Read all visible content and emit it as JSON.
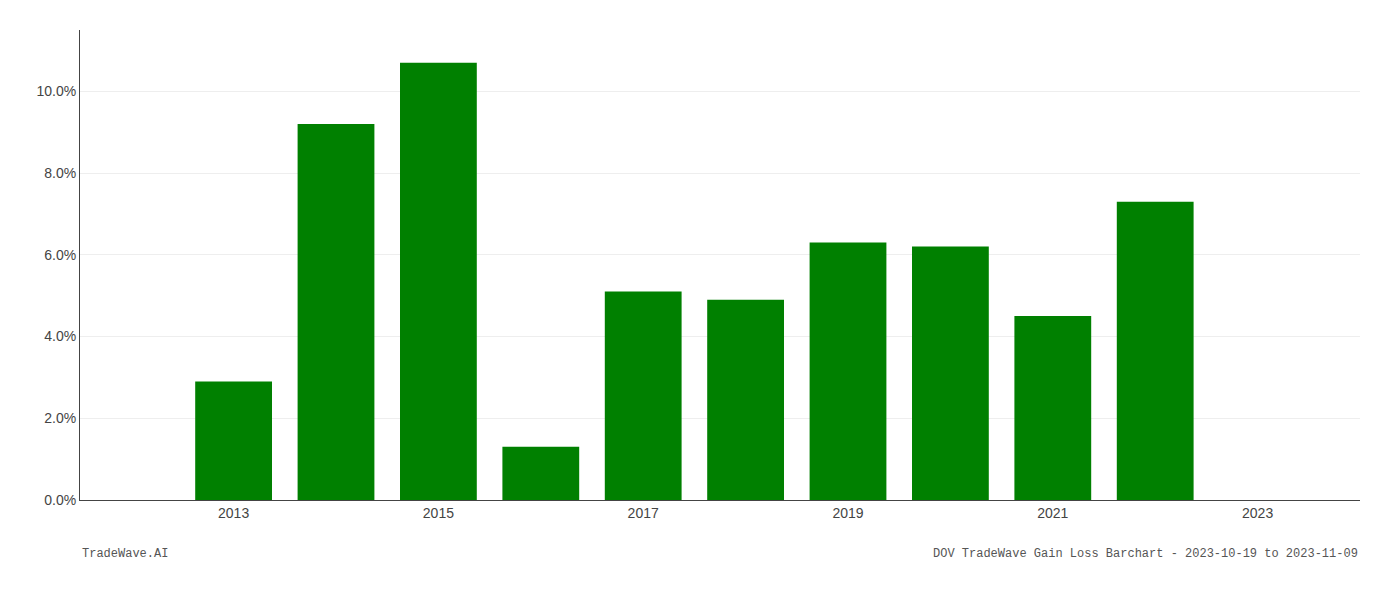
{
  "chart_data": {
    "type": "bar",
    "x": [
      2013,
      2014,
      2015,
      2016,
      2017,
      2018,
      2019,
      2020,
      2021,
      2022
    ],
    "values": [
      0.029,
      0.092,
      0.107,
      0.013,
      0.051,
      0.049,
      0.063,
      0.062,
      0.045,
      0.073
    ],
    "color": "#008000",
    "xlim": [
      2011.5,
      2024.0
    ],
    "xticks": [
      2013,
      2015,
      2017,
      2019,
      2021,
      2023
    ],
    "ylim": [
      0,
      0.115
    ],
    "yticks": [
      {
        "value": 0.0,
        "label": "0.0%"
      },
      {
        "value": 0.02,
        "label": "2.0%"
      },
      {
        "value": 0.04,
        "label": "4.0%"
      },
      {
        "value": 0.06,
        "label": "6.0%"
      },
      {
        "value": 0.08,
        "label": "8.0%"
      },
      {
        "value": 0.1,
        "label": "10.0%"
      }
    ],
    "grid": "y",
    "annotations": [
      "TradeWave.AI",
      "DOV TradeWave Gain Loss Barchart - 2023-10-19 to 2023-11-09"
    ]
  }
}
